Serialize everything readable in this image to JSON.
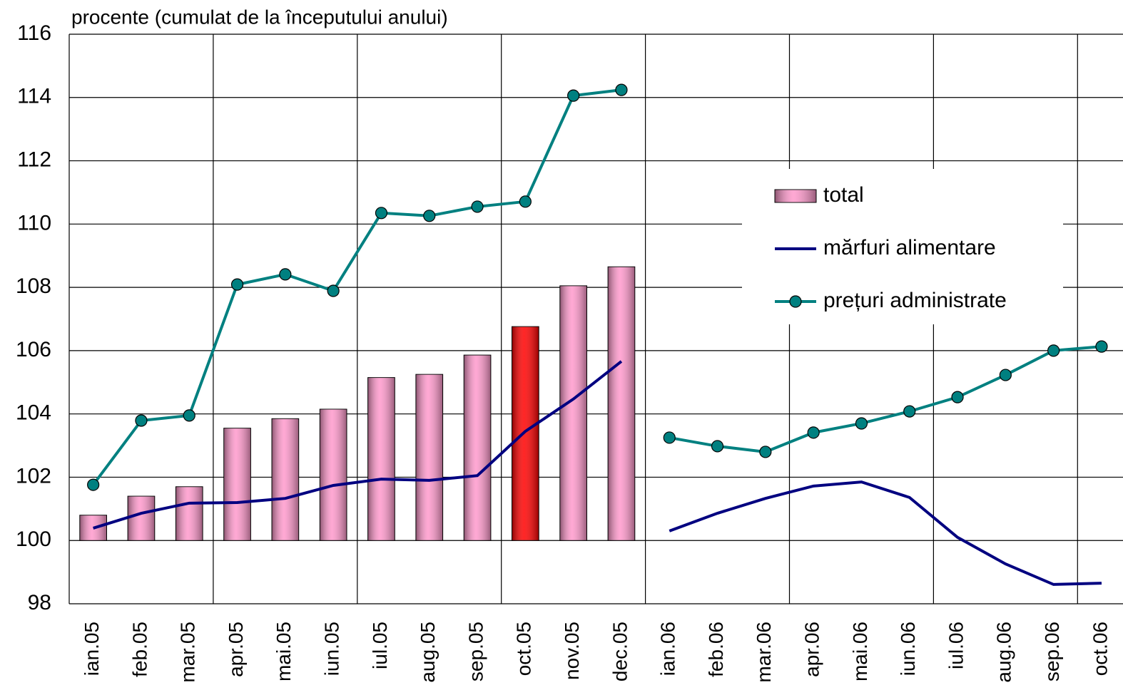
{
  "chart_data": {
    "type": "bar",
    "y_label": "procente (cumulat de la începutului anului)",
    "categories": [
      "ian.05",
      "feb.05",
      "mar.05",
      "apr.05",
      "mai.05",
      "iun.05",
      "iul.05",
      "aug.05",
      "sep.05",
      "oct.05",
      "nov.05",
      "dec.05",
      "ian.06",
      "feb.06",
      "mar.06",
      "apr.06",
      "mai.06",
      "iun.06",
      "iul.06",
      "aug.06",
      "sep.06",
      "oct.06"
    ],
    "series": [
      {
        "name": "total",
        "type": "bar",
        "color": "#ff99cc",
        "colors": [
          "#ff99cc",
          "#ff99cc",
          "#ff99cc",
          "#ff99cc",
          "#ff99cc",
          "#ff99cc",
          "#ff99cc",
          "#ff99cc",
          "#ff99cc",
          "#ff0000",
          "#ff99cc",
          "#ff99cc",
          "#ff99cc",
          "#ff99cc",
          "#ff99cc",
          "#ff99cc",
          "#ff99cc",
          "#ff99cc",
          "#ff99cc",
          "#ff99cc",
          "#ff99cc",
          "#ff0000"
        ],
        "values": [
          100.8,
          101.4,
          101.7,
          103.55,
          103.85,
          104.15,
          105.15,
          105.25,
          105.86,
          106.76,
          108.05,
          108.65,
          null,
          null,
          null,
          null,
          null,
          null,
          null,
          null,
          null,
          null
        ]
      },
      {
        "name": "mărfuri alimentare",
        "type": "line",
        "color": "#000080",
        "marker": false,
        "values": [
          100.39,
          100.86,
          101.18,
          101.2,
          101.33,
          101.74,
          101.94,
          101.9,
          102.05,
          103.45,
          104.47,
          105.66,
          100.3,
          100.86,
          101.33,
          101.72,
          101.85,
          101.36,
          100.1,
          99.26,
          98.61,
          98.65
        ]
      },
      {
        "name": "prețuri administrate",
        "type": "line",
        "color": "#008080",
        "marker": true,
        "values": [
          101.76,
          103.79,
          103.95,
          108.09,
          108.41,
          107.89,
          110.35,
          110.26,
          110.55,
          110.71,
          114.06,
          114.24,
          103.25,
          102.98,
          102.8,
          103.41,
          103.7,
          104.08,
          104.53,
          105.23,
          106.0,
          106.13
        ]
      }
    ],
    "ylim": [
      98,
      116
    ],
    "yticks": [
      98,
      100,
      102,
      104,
      106,
      108,
      110,
      112,
      114,
      116
    ],
    "grid": true,
    "legend": "right"
  }
}
